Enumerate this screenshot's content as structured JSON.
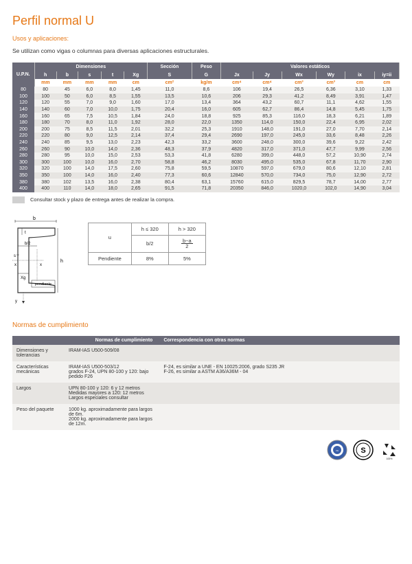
{
  "title": "Perfil normal U",
  "subtitle": "Usos y aplicaciones:",
  "description": "Se utilizan como vigas o columnas para diversas aplicaciones estructurales.",
  "main_table": {
    "group_headers": [
      "U.P.N.",
      "Dimensiones",
      "Sección",
      "Peso",
      "Valores estáticos"
    ],
    "group_spans": [
      1,
      5,
      1,
      1,
      6
    ],
    "sub_headers": [
      "h",
      "b",
      "s",
      "t",
      "Xg",
      "S",
      "G",
      "Jx",
      "Jy",
      "Wx",
      "Wy",
      "ix",
      "iy=ii"
    ],
    "units": [
      "mm",
      "mm",
      "mm",
      "mm",
      "cm",
      "cm²",
      "kg/m",
      "cm⁴",
      "cm⁴",
      "cm³",
      "cm³",
      "cm",
      "cm"
    ],
    "rows": [
      [
        "80",
        "80",
        "45",
        "6,0",
        "8,0",
        "1,45",
        "11,0",
        "8,6",
        "106",
        "19,4",
        "26,5",
        "6,36",
        "3,10",
        "1,33"
      ],
      [
        "100",
        "100",
        "50",
        "6,0",
        "8,5",
        "1,55",
        "13,5",
        "10,6",
        "206",
        "29,3",
        "41,2",
        "8,49",
        "3,91",
        "1,47"
      ],
      [
        "120",
        "120",
        "55",
        "7,0",
        "9,0",
        "1,60",
        "17,0",
        "13,4",
        "364",
        "43,2",
        "60,7",
        "11,1",
        "4,62",
        "1,55"
      ],
      [
        "140",
        "140",
        "60",
        "7,0",
        "10,0",
        "1,75",
        "20,4",
        "16,0",
        "605",
        "62,7",
        "86,4",
        "14,8",
        "5,45",
        "1,75"
      ],
      [
        "160",
        "160",
        "65",
        "7,5",
        "10,5",
        "1,84",
        "24,0",
        "18,8",
        "925",
        "85,3",
        "116,0",
        "18,3",
        "6,21",
        "1,89"
      ],
      [
        "180",
        "180",
        "70",
        "8,0",
        "11,0",
        "1,92",
        "28,0",
        "22,0",
        "1350",
        "114,0",
        "150,0",
        "22,4",
        "6,95",
        "2,02"
      ],
      [
        "200",
        "200",
        "75",
        "8,5",
        "11,5",
        "2,01",
        "32,2",
        "25,3",
        "1910",
        "148,0",
        "191,0",
        "27,0",
        "7,70",
        "2,14"
      ],
      [
        "220",
        "220",
        "80",
        "9,0",
        "12,5",
        "2,14",
        "37,4",
        "29,4",
        "2690",
        "197,0",
        "245,0",
        "33,6",
        "8,48",
        "2,26"
      ],
      [
        "240",
        "240",
        "85",
        "9,5",
        "13,0",
        "2,23",
        "42,3",
        "33,2",
        "3600",
        "248,0",
        "300,0",
        "39,6",
        "9,22",
        "2,42"
      ],
      [
        "260",
        "260",
        "90",
        "10,0",
        "14,0",
        "2,36",
        "48,3",
        "37,9",
        "4820",
        "317,0",
        "371,0",
        "47,7",
        "9,99",
        "2,56"
      ],
      [
        "280",
        "280",
        "95",
        "10,0",
        "15,0",
        "2,53",
        "53,3",
        "41,8",
        "6280",
        "399,0",
        "448,0",
        "57,2",
        "10,90",
        "2,74"
      ],
      [
        "300",
        "300",
        "100",
        "10,0",
        "16,0",
        "2,70",
        "58,8",
        "46,2",
        "8030",
        "495,0",
        "535,0",
        "67,8",
        "11,70",
        "2,90"
      ],
      [
        "320",
        "320",
        "100",
        "14,0",
        "17,5",
        "2,60",
        "75,8",
        "59,5",
        "10870",
        "597,0",
        "679,0",
        "80,6",
        "12,10",
        "2,81"
      ],
      [
        "350",
        "350",
        "100",
        "14,0",
        "16,0",
        "2,40",
        "77,3",
        "60,6",
        "12840",
        "570,0",
        "734,0",
        "75,0",
        "12,90",
        "2,72"
      ],
      [
        "380",
        "380",
        "102",
        "13,5",
        "16,0",
        "2,38",
        "80,4",
        "63,1",
        "15760",
        "615,0",
        "829,5",
        "78,7",
        "14,00",
        "2,77"
      ],
      [
        "400",
        "400",
        "110",
        "14,0",
        "18,0",
        "2,65",
        "91,5",
        "71,8",
        "20350",
        "846,0",
        "1020,0",
        "102,0",
        "14,90",
        "3,04"
      ]
    ]
  },
  "note": "Consultar stock y plazo de entrega antes de realizar la compra.",
  "diagram_labels": {
    "b": "b",
    "t": "t",
    "b2": "b/2",
    "s": "s",
    "x": "x",
    "h": "h",
    "xg": "Xg",
    "pendiente": "pendiente",
    "y": "y"
  },
  "small_table": {
    "h1": "h ≤ 320",
    "h2": "h > 320",
    "u": "u",
    "b2": "b/2",
    "ba2": "b−a / 2",
    "pend": "Pendiente",
    "p1": "8%",
    "p2": "5%"
  },
  "norms_title": "Normas de cumplimiento",
  "norms_headers": [
    "Normas de cumplimiento",
    "Correspondencia con otras normas"
  ],
  "norms_rows": [
    {
      "label": "Dimensiones y tolerancias",
      "c1": "IRAM-IAS U500-509/08",
      "c2": ""
    },
    {
      "label": "Características mecánicas",
      "c1": "IRAM-IAS U500-503/12\ngrados F-24, UPN 80-100 y 120: bajo pedido F26",
      "c2": "F-24, es similar a UNE - EN 10025:2006, grado S235 JR\nF-26, es similar a ASTM A36/A36M - 04"
    },
    {
      "label": "Largos",
      "c1": "UPN 80-100 y 120: 6 y 12 metros\nMedidas mayores a 120: 12 metros\nLargos especiales consultar",
      "c2": ""
    },
    {
      "label": "Peso del paquete",
      "c1": "1000 kg. aproximadamente para largos de 6m.\n2000 kg. aproximadamente para largos de 12m.",
      "c2": ""
    }
  ],
  "colors": {
    "orange": "#e67817",
    "header": "#6a6a78",
    "row1": "#f3f2f0",
    "row2": "#e7e5e2"
  }
}
